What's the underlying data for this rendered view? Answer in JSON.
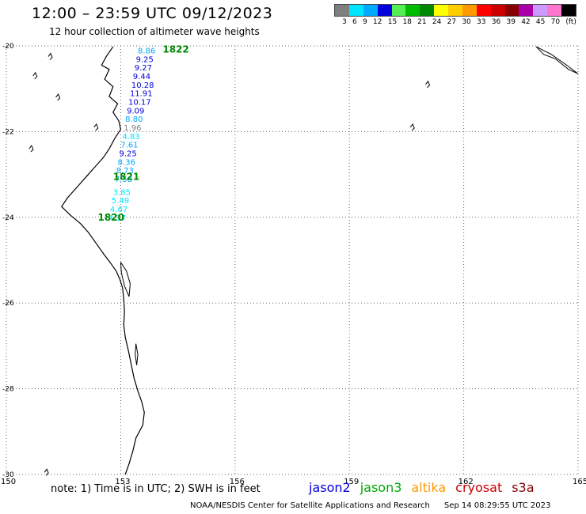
{
  "header": {
    "title": "12:00 – 23:59 UTC 09/12/2023",
    "subtitle": "12 hour collection of altimeter wave heights"
  },
  "legend": {
    "colors": [
      "#7f7f7f",
      "#00e5ff",
      "#00aaff",
      "#0000dd",
      "#55ee55",
      "#00bb00",
      "#008800",
      "#ffff00",
      "#ffcc00",
      "#ff9900",
      "#ff0000",
      "#cc0000",
      "#880000",
      "#aa00aa",
      "#cc99ff",
      "#ff77cc",
      "#000000"
    ],
    "ticks": [
      "3",
      "6",
      "9",
      "12",
      "15",
      "18",
      "21",
      "24",
      "27",
      "30",
      "33",
      "36",
      "39",
      "42",
      "45",
      "70",
      "(ft)"
    ]
  },
  "map": {
    "lat_labels": [
      "-20",
      "-22",
      "-24",
      "-26",
      "-28",
      "-30"
    ],
    "lon_labels": [
      "150",
      "153",
      "156",
      "159",
      "162",
      "165"
    ]
  },
  "passes": [
    {
      "id": "1822"
    },
    {
      "id": "1821"
    },
    {
      "id": "1820"
    }
  ],
  "observations": [
    {
      "lon": 153.45,
      "lat": -20.1,
      "value": "8.86",
      "color": "#00aaff"
    },
    {
      "lon": 153.4,
      "lat": -20.3,
      "value": "9.25",
      "color": "#0000dd"
    },
    {
      "lon": 153.36,
      "lat": -20.5,
      "value": "9.27",
      "color": "#0000dd"
    },
    {
      "lon": 153.32,
      "lat": -20.7,
      "value": "9.44",
      "color": "#0000dd"
    },
    {
      "lon": 153.28,
      "lat": -20.9,
      "value": "10.28",
      "color": "#0000dd"
    },
    {
      "lon": 153.24,
      "lat": -21.1,
      "value": "11.91",
      "color": "#0000dd"
    },
    {
      "lon": 153.2,
      "lat": -21.3,
      "value": "10.17",
      "color": "#0000dd"
    },
    {
      "lon": 153.16,
      "lat": -21.5,
      "value": "9.09",
      "color": "#0000dd"
    },
    {
      "lon": 153.12,
      "lat": -21.7,
      "value": "8.80",
      "color": "#00aaff"
    },
    {
      "lon": 153.08,
      "lat": -21.9,
      "value": "1.96",
      "color": "#7f7f7f"
    },
    {
      "lon": 153.04,
      "lat": -22.1,
      "value": "4.83",
      "color": "#00e5ff"
    },
    {
      "lon": 153.0,
      "lat": -22.3,
      "value": "7.61",
      "color": "#00aaff"
    },
    {
      "lon": 152.96,
      "lat": -22.5,
      "value": "9.25",
      "color": "#0000dd"
    },
    {
      "lon": 152.92,
      "lat": -22.7,
      "value": "8.36",
      "color": "#00aaff"
    },
    {
      "lon": 152.88,
      "lat": -22.9,
      "value": "8.73",
      "color": "#00aaff"
    },
    {
      "lon": 152.84,
      "lat": -23.1,
      "value": "7.58",
      "color": "#00aaff"
    },
    {
      "lon": 152.8,
      "lat": -23.4,
      "value": "3.85",
      "color": "#00e5ff"
    },
    {
      "lon": 152.76,
      "lat": -23.6,
      "value": "5.49",
      "color": "#00e5ff"
    },
    {
      "lon": 152.72,
      "lat": -23.8,
      "value": "4.67",
      "color": "#00e5ff"
    },
    {
      "lon": 152.68,
      "lat": -24.0,
      "value": "4.17",
      "color": "#00e5ff"
    }
  ],
  "footer": {
    "note": "note: 1) Time is in UTC; 2) SWH is in feet",
    "satellites": [
      {
        "name": "jason2",
        "color": "#0000dd"
      },
      {
        "name": "jason3",
        "color": "#00aa00"
      },
      {
        "name": "altika",
        "color": "#ff9900"
      },
      {
        "name": "cryosat",
        "color": "#cc0000"
      },
      {
        "name": "s3a",
        "color": "#880000"
      }
    ],
    "credit": "NOAA/NESDIS Center for Satellite Applications and Research",
    "timestamp": "Sep 14 08:29:55 UTC 2023"
  }
}
